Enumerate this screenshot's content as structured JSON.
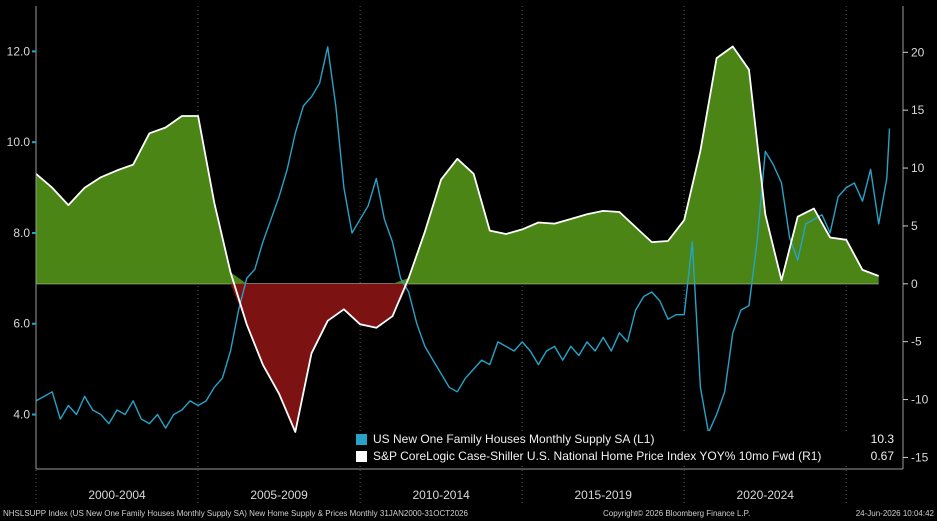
{
  "chart_data": {
    "type": "line",
    "colors": {
      "supply_line": "#27a3c7",
      "hpi_line": "#ffffff",
      "positive_fill": "#4a8516",
      "negative_fill": "#7d1212",
      "background": "#000000",
      "grid": "#555555"
    },
    "left_axis": {
      "ylim": [
        2.8,
        13.0
      ],
      "ticks": [
        4.0,
        6.0,
        8.0,
        10.0,
        12.0
      ],
      "tick_labels": [
        "4.0",
        "6.0",
        "8.0",
        "10.0",
        "12.0"
      ]
    },
    "right_axis": {
      "ylim": [
        -16,
        24
      ],
      "ticks": [
        -15,
        -10,
        -5,
        0,
        5,
        10,
        15,
        20
      ],
      "tick_labels": [
        "-15",
        "-10",
        "-5",
        "0",
        "5",
        "10",
        "15",
        "20"
      ]
    },
    "x_axis": {
      "range": [
        "2000-01",
        "2026-10"
      ],
      "period_labels": [
        "2000-2004",
        "2005-2009",
        "2010-2014",
        "2015-2019",
        "2020-2024"
      ],
      "period_boundaries": [
        "2000-01",
        "2005-01",
        "2010-01",
        "2015-01",
        "2020-01",
        "2025-01"
      ]
    },
    "series": [
      {
        "name": "US New One Family Houses Monthly Supply SA (L1)",
        "axis": "left",
        "last_value": "10.3",
        "points": [
          [
            "2000-01",
            4.3
          ],
          [
            "2000-04",
            4.4
          ],
          [
            "2000-07",
            4.5
          ],
          [
            "2000-10",
            3.9
          ],
          [
            "2001-01",
            4.2
          ],
          [
            "2001-04",
            4.0
          ],
          [
            "2001-07",
            4.4
          ],
          [
            "2001-10",
            4.1
          ],
          [
            "2002-01",
            4.0
          ],
          [
            "2002-04",
            3.8
          ],
          [
            "2002-07",
            4.1
          ],
          [
            "2002-10",
            4.0
          ],
          [
            "2003-01",
            4.3
          ],
          [
            "2003-04",
            3.9
          ],
          [
            "2003-07",
            3.8
          ],
          [
            "2003-10",
            4.0
          ],
          [
            "2004-01",
            3.7
          ],
          [
            "2004-04",
            4.0
          ],
          [
            "2004-07",
            4.1
          ],
          [
            "2004-10",
            4.3
          ],
          [
            "2005-01",
            4.2
          ],
          [
            "2005-04",
            4.3
          ],
          [
            "2005-07",
            4.6
          ],
          [
            "2005-10",
            4.8
          ],
          [
            "2006-01",
            5.4
          ],
          [
            "2006-04",
            6.3
          ],
          [
            "2006-07",
            7.0
          ],
          [
            "2006-10",
            7.2
          ],
          [
            "2007-01",
            7.8
          ],
          [
            "2007-04",
            8.3
          ],
          [
            "2007-07",
            8.8
          ],
          [
            "2007-10",
            9.4
          ],
          [
            "2008-01",
            10.2
          ],
          [
            "2008-04",
            10.8
          ],
          [
            "2008-07",
            11.0
          ],
          [
            "2008-10",
            11.3
          ],
          [
            "2009-01",
            12.1
          ],
          [
            "2009-04",
            10.8
          ],
          [
            "2009-07",
            9.0
          ],
          [
            "2009-10",
            8.0
          ],
          [
            "2010-01",
            8.3
          ],
          [
            "2010-04",
            8.6
          ],
          [
            "2010-07",
            9.2
          ],
          [
            "2010-10",
            8.3
          ],
          [
            "2011-01",
            7.8
          ],
          [
            "2011-04",
            7.0
          ],
          [
            "2011-07",
            6.7
          ],
          [
            "2011-10",
            6.0
          ],
          [
            "2012-01",
            5.5
          ],
          [
            "2012-04",
            5.2
          ],
          [
            "2012-07",
            4.9
          ],
          [
            "2012-10",
            4.6
          ],
          [
            "2013-01",
            4.5
          ],
          [
            "2013-04",
            4.8
          ],
          [
            "2013-07",
            5.0
          ],
          [
            "2013-10",
            5.2
          ],
          [
            "2014-01",
            5.1
          ],
          [
            "2014-04",
            5.6
          ],
          [
            "2014-07",
            5.5
          ],
          [
            "2014-10",
            5.4
          ],
          [
            "2015-01",
            5.6
          ],
          [
            "2015-04",
            5.4
          ],
          [
            "2015-07",
            5.1
          ],
          [
            "2015-10",
            5.4
          ],
          [
            "2016-01",
            5.5
          ],
          [
            "2016-04",
            5.2
          ],
          [
            "2016-07",
            5.5
          ],
          [
            "2016-10",
            5.3
          ],
          [
            "2017-01",
            5.6
          ],
          [
            "2017-04",
            5.4
          ],
          [
            "2017-07",
            5.7
          ],
          [
            "2017-10",
            5.4
          ],
          [
            "2018-01",
            5.8
          ],
          [
            "2018-04",
            5.6
          ],
          [
            "2018-07",
            6.3
          ],
          [
            "2018-10",
            6.6
          ],
          [
            "2019-01",
            6.7
          ],
          [
            "2019-04",
            6.5
          ],
          [
            "2019-07",
            6.1
          ],
          [
            "2019-10",
            6.2
          ],
          [
            "2020-01",
            6.2
          ],
          [
            "2020-04",
            7.8
          ],
          [
            "2020-07",
            4.6
          ],
          [
            "2020-10",
            3.6
          ],
          [
            "2021-01",
            4.0
          ],
          [
            "2021-04",
            4.5
          ],
          [
            "2021-07",
            5.8
          ],
          [
            "2021-10",
            6.3
          ],
          [
            "2022-01",
            6.4
          ],
          [
            "2022-04",
            7.8
          ],
          [
            "2022-07",
            9.8
          ],
          [
            "2022-10",
            9.5
          ],
          [
            "2023-01",
            9.1
          ],
          [
            "2023-04",
            7.9
          ],
          [
            "2023-07",
            7.4
          ],
          [
            "2023-10",
            8.2
          ],
          [
            "2024-01",
            8.3
          ],
          [
            "2024-04",
            8.4
          ],
          [
            "2024-07",
            8.0
          ],
          [
            "2024-10",
            8.8
          ],
          [
            "2025-01",
            9.0
          ],
          [
            "2025-04",
            9.1
          ],
          [
            "2025-07",
            8.7
          ],
          [
            "2025-10",
            9.4
          ],
          [
            "2026-01",
            8.2
          ],
          [
            "2026-04",
            9.2
          ],
          [
            "2026-05",
            10.3
          ]
        ]
      },
      {
        "name": "S&P CoreLogic Case-Shiller U.S. National Home Price Index YOY% 10mo Fwd (R1)",
        "axis": "right",
        "last_value": "0.67",
        "points": [
          [
            "2000-01",
            9.5
          ],
          [
            "2000-07",
            8.3
          ],
          [
            "2001-01",
            6.8
          ],
          [
            "2001-07",
            8.3
          ],
          [
            "2002-01",
            9.2
          ],
          [
            "2002-07",
            9.8
          ],
          [
            "2003-01",
            10.3
          ],
          [
            "2003-07",
            13.0
          ],
          [
            "2004-01",
            13.5
          ],
          [
            "2004-07",
            14.5
          ],
          [
            "2005-01",
            14.5
          ],
          [
            "2005-07",
            7.0
          ],
          [
            "2006-01",
            1.0
          ],
          [
            "2006-07",
            -3.5
          ],
          [
            "2007-01",
            -7.0
          ],
          [
            "2007-07",
            -9.5
          ],
          [
            "2008-01",
            -12.8
          ],
          [
            "2008-07",
            -6.0
          ],
          [
            "2009-01",
            -3.2
          ],
          [
            "2009-07",
            -2.2
          ],
          [
            "2010-01",
            -3.5
          ],
          [
            "2010-07",
            -3.8
          ],
          [
            "2011-01",
            -2.8
          ],
          [
            "2011-07",
            0.5
          ],
          [
            "2012-01",
            4.5
          ],
          [
            "2012-07",
            9.0
          ],
          [
            "2013-01",
            10.8
          ],
          [
            "2013-07",
            9.5
          ],
          [
            "2014-01",
            4.6
          ],
          [
            "2014-07",
            4.3
          ],
          [
            "2015-01",
            4.7
          ],
          [
            "2015-07",
            5.3
          ],
          [
            "2016-01",
            5.2
          ],
          [
            "2016-07",
            5.6
          ],
          [
            "2017-01",
            6.0
          ],
          [
            "2017-07",
            6.3
          ],
          [
            "2018-01",
            6.2
          ],
          [
            "2018-07",
            4.9
          ],
          [
            "2019-01",
            3.6
          ],
          [
            "2019-07",
            3.7
          ],
          [
            "2020-01",
            5.5
          ],
          [
            "2020-07",
            11.5
          ],
          [
            "2021-01",
            19.5
          ],
          [
            "2021-07",
            20.5
          ],
          [
            "2022-01",
            18.5
          ],
          [
            "2022-07",
            6.0
          ],
          [
            "2023-01",
            0.3
          ],
          [
            "2023-07",
            5.8
          ],
          [
            "2024-01",
            6.5
          ],
          [
            "2024-07",
            4.0
          ],
          [
            "2025-01",
            3.8
          ],
          [
            "2025-07",
            1.2
          ],
          [
            "2026-01",
            0.67
          ]
        ]
      }
    ]
  },
  "footer": {
    "left": "NHSLSUPP Index (US New One Family Houses Monthly Supply SA) New Home Supply & Prices Monthly 31JAN2000-31OCT2026",
    "center": "Copyright© 2026 Bloomberg Finance L.P.",
    "right": "24-Jun-2026 10:04:42"
  }
}
